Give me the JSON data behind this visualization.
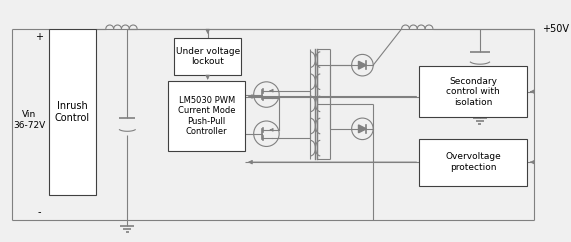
{
  "bg_color": "#f0f0f0",
  "line_color": "#808080",
  "box_color": "#404040",
  "text_color": "#000000",
  "labels": {
    "vin": "Vin\n36-72V",
    "plus": "+",
    "minus": "-",
    "inrush": "Inrush\nControl",
    "uvlo": "Under voltage\nlockout",
    "pwm": "LM5030 PWM\nCurrent Mode\nPush-Pull\nController",
    "secondary": "Secondary\ncontrol with\nisolation",
    "overvoltage": "Overvoltage\nprotection",
    "vout": "+50V"
  },
  "figsize": [
    5.71,
    2.42
  ],
  "dpi": 100
}
